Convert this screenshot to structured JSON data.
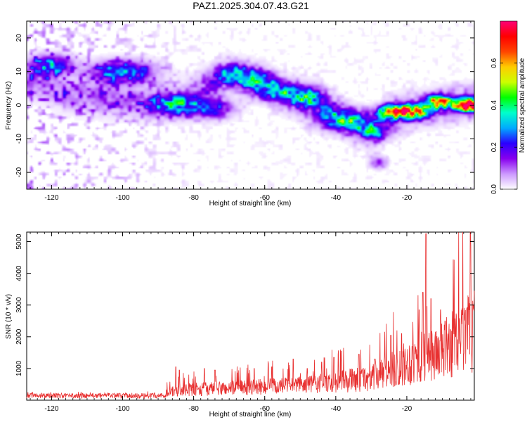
{
  "figure": {
    "title": "PAZ1.2025.304.07.43.G21"
  },
  "colors": {
    "snr_line": "#e83030",
    "axis": "#000000",
    "background": "#ffffff"
  },
  "chart_data": [
    {
      "type": "heatmap",
      "name": "spectrogram",
      "xlabel": "Height of straight line (km)",
      "ylabel": "Frequency (Hz)",
      "xlim": [
        -127,
        -1
      ],
      "ylim": [
        -25,
        25
      ],
      "xticks": [
        -120,
        -100,
        -80,
        -60,
        -40,
        -20
      ],
      "yticks": [
        -20,
        -10,
        0,
        10,
        20
      ],
      "colorbar": {
        "label": "Normalized spectral amplitude",
        "range": [
          0,
          0.8
        ],
        "ticks": [
          0.0,
          0.2,
          0.4,
          0.6
        ],
        "tick_labels": [
          "0.0",
          "0.2",
          "0.4",
          "0.6"
        ],
        "colormap": [
          "#ffffff",
          "#cc99ff",
          "#8800ee",
          "#2a00ff",
          "#00aaff",
          "#00ffcc",
          "#00ff00",
          "#ccff00",
          "#ffcc00",
          "#ff4400",
          "#ff0000",
          "#ff0077"
        ]
      },
      "ridge": [
        {
          "x": -125,
          "y": 7
        },
        {
          "x": -115,
          "y": 3
        },
        {
          "x": -105,
          "y": 2
        },
        {
          "x": -95,
          "y": 1
        },
        {
          "x": -85,
          "y": 1
        },
        {
          "x": -80,
          "y": 3
        },
        {
          "x": -70,
          "y": 9
        },
        {
          "x": -60,
          "y": 7
        },
        {
          "x": -55,
          "y": 3
        },
        {
          "x": -45,
          "y": 1
        },
        {
          "x": -38,
          "y": -4
        },
        {
          "x": -30,
          "y": -8
        },
        {
          "x": -25,
          "y": -3
        },
        {
          "x": -20,
          "y": -2
        },
        {
          "x": -15,
          "y": -1
        },
        {
          "x": -10,
          "y": 0
        },
        {
          "x": -1,
          "y": 1
        }
      ],
      "blobs": [
        {
          "x": -100,
          "y": 10,
          "fx": 6,
          "fy": 2.2,
          "a": 0.3
        },
        {
          "x": -120,
          "y": 12,
          "fx": 4,
          "fy": 2.0,
          "a": 0.28
        },
        {
          "x": -85,
          "y": 0,
          "fx": 5,
          "fy": 2.0,
          "a": 0.25
        },
        {
          "x": -75,
          "y": -1,
          "fx": 4,
          "fy": 2.0,
          "a": 0.24
        },
        {
          "x": -68,
          "y": 9,
          "fx": 4,
          "fy": 1.8,
          "a": 0.28
        },
        {
          "x": -62,
          "y": 7,
          "fx": 3,
          "fy": 1.6,
          "a": 0.24
        },
        {
          "x": -56,
          "y": 4,
          "fx": 4,
          "fy": 2.0,
          "a": 0.26
        },
        {
          "x": -48,
          "y": 2,
          "fx": 3,
          "fy": 2.0,
          "a": 0.28
        },
        {
          "x": -40,
          "y": -4,
          "fx": 4,
          "fy": 2.2,
          "a": 0.26
        },
        {
          "x": -34,
          "y": -5,
          "fx": 3,
          "fy": 1.8,
          "a": 0.22
        },
        {
          "x": -29,
          "y": -8,
          "fx": 3,
          "fy": 1.6,
          "a": 0.24
        },
        {
          "x": -24,
          "y": -2,
          "fx": 3,
          "fy": 1.4,
          "a": 0.55
        },
        {
          "x": -18,
          "y": -2,
          "fx": 3,
          "fy": 1.4,
          "a": 0.5
        },
        {
          "x": -11,
          "y": 1,
          "fx": 2.5,
          "fy": 1.3,
          "a": 0.6
        },
        {
          "x": -3,
          "y": 0,
          "fx": 2.5,
          "fy": 1.3,
          "a": 0.8
        },
        {
          "x": -28,
          "y": -17,
          "fx": 1.5,
          "fy": 1.2,
          "a": 0.18
        }
      ]
    },
    {
      "type": "line",
      "name": "snr",
      "xlabel": "Height of straight line (km)",
      "ylabel": "SNR (10 * v/v)",
      "xlim": [
        -127,
        -1
      ],
      "ylim": [
        0,
        5300
      ],
      "xticks": [
        -120,
        -100,
        -80,
        -60,
        -40,
        -20
      ],
      "yticks": [
        1000,
        2000,
        3000,
        4000,
        5000
      ],
      "envelope": [
        {
          "x": -127,
          "y": 150
        },
        {
          "x": -90,
          "y": 180
        },
        {
          "x": -86,
          "y": 300
        },
        {
          "x": -80,
          "y": 380
        },
        {
          "x": -70,
          "y": 420
        },
        {
          "x": -60,
          "y": 470
        },
        {
          "x": -50,
          "y": 520
        },
        {
          "x": -40,
          "y": 640
        },
        {
          "x": -30,
          "y": 780
        },
        {
          "x": -25,
          "y": 1000
        },
        {
          "x": -20,
          "y": 1300
        },
        {
          "x": -16,
          "y": 1500
        },
        {
          "x": -10,
          "y": 1750
        },
        {
          "x": -5,
          "y": 2100
        },
        {
          "x": -1,
          "y": 2450
        }
      ],
      "peaks": [
        {
          "x": -14.6,
          "y": 5250
        },
        {
          "x": -15.5,
          "y": 3400
        },
        {
          "x": -16.5,
          "y": 2850
        },
        {
          "x": -13.2,
          "y": 3200
        },
        {
          "x": -10.5,
          "y": 2850
        },
        {
          "x": -9.2,
          "y": 2500
        },
        {
          "x": -2.5,
          "y": 2850
        },
        {
          "x": -1.2,
          "y": 3000
        },
        {
          "x": -21.5,
          "y": 2100
        },
        {
          "x": -24.5,
          "y": 2050
        },
        {
          "x": -29,
          "y": 1300
        },
        {
          "x": -33.5,
          "y": 1450
        },
        {
          "x": -38.5,
          "y": 1550
        },
        {
          "x": -40.5,
          "y": 1350
        },
        {
          "x": -44,
          "y": 1200
        },
        {
          "x": -48,
          "y": 1000
        },
        {
          "x": -52,
          "y": 1300
        },
        {
          "x": -58,
          "y": 1050
        },
        {
          "x": -63,
          "y": 1000
        },
        {
          "x": -74,
          "y": 950
        },
        {
          "x": -77,
          "y": 1000
        },
        {
          "x": -85,
          "y": 1050
        },
        {
          "x": -84,
          "y": 950
        }
      ]
    }
  ]
}
